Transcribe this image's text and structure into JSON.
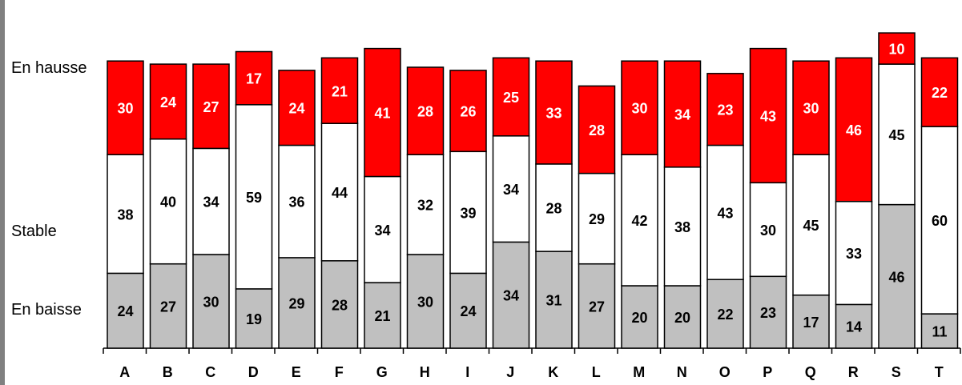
{
  "chart_data": {
    "type": "bar",
    "stacked": true,
    "normalized": true,
    "categories": [
      "A",
      "B",
      "C",
      "D",
      "E",
      "F",
      "G",
      "H",
      "I",
      "J",
      "K",
      "L",
      "M",
      "N",
      "O",
      "P",
      "Q",
      "R",
      "S",
      "T"
    ],
    "series": [
      {
        "name": "En baisse",
        "color": "#c0c0c0",
        "label_color": "#000000",
        "values": [
          24,
          27,
          30,
          19,
          29,
          28,
          21,
          30,
          24,
          34,
          31,
          27,
          20,
          20,
          22,
          23,
          17,
          14,
          46,
          11
        ]
      },
      {
        "name": "Stable",
        "color": "#ffffff",
        "label_color": "#000000",
        "values": [
          38,
          40,
          34,
          59,
          36,
          44,
          34,
          32,
          39,
          34,
          28,
          29,
          42,
          38,
          43,
          30,
          45,
          33,
          45,
          60
        ]
      },
      {
        "name": "En hausse",
        "color": "#ff0000",
        "label_color": "#ffffff",
        "values": [
          30,
          24,
          27,
          17,
          24,
          21,
          41,
          28,
          26,
          25,
          33,
          28,
          30,
          34,
          23,
          43,
          30,
          46,
          10,
          22
        ]
      }
    ],
    "grid": false,
    "legend": "left"
  }
}
